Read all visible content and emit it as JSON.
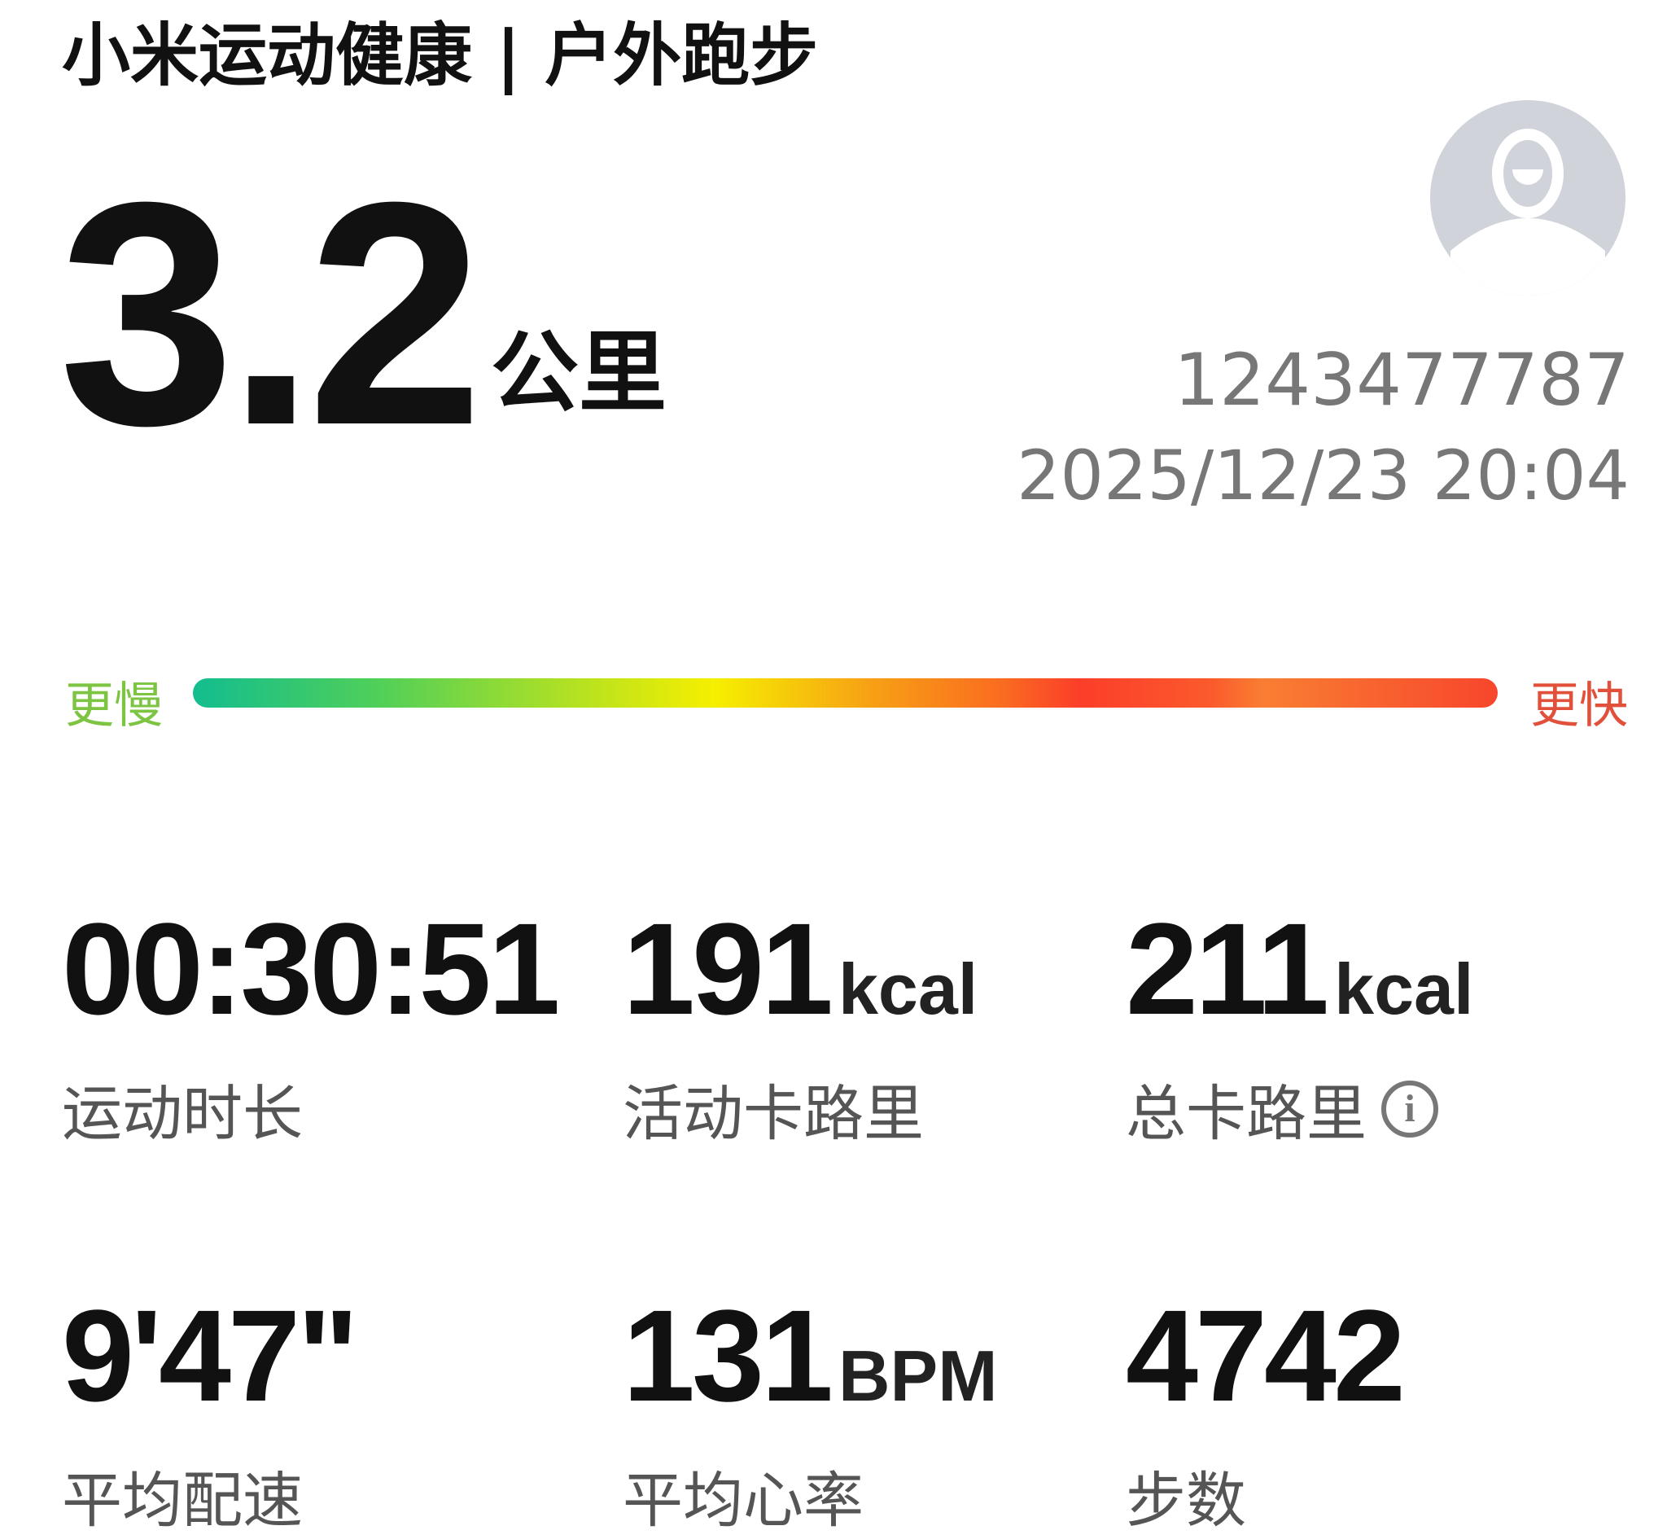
{
  "header": {
    "title": "小米运动健康 | 户外跑步"
  },
  "distance": {
    "value": "3.2",
    "unit": "公里"
  },
  "user": {
    "id": "1243477787",
    "datetime": "2025/12/23 20:04",
    "avatar_icon": "default-avatar-icon"
  },
  "pace_scale": {
    "slow_label": "更慢",
    "fast_label": "更快",
    "slow_color": "#7cc441",
    "fast_color": "#e0503a"
  },
  "stats": [
    {
      "value": "00:30:51",
      "unit": "",
      "label": "运动时长"
    },
    {
      "value": "191",
      "unit": "kcal",
      "label": "活动卡路里"
    },
    {
      "value": "211",
      "unit": "kcal",
      "label": "总卡路里",
      "icon": "info-icon"
    },
    {
      "value": "9'47\"",
      "unit": "",
      "label": "平均配速"
    },
    {
      "value": "131",
      "unit": "BPM",
      "label": "平均心率"
    },
    {
      "value": "4742",
      "unit": "",
      "label": "步数"
    }
  ]
}
